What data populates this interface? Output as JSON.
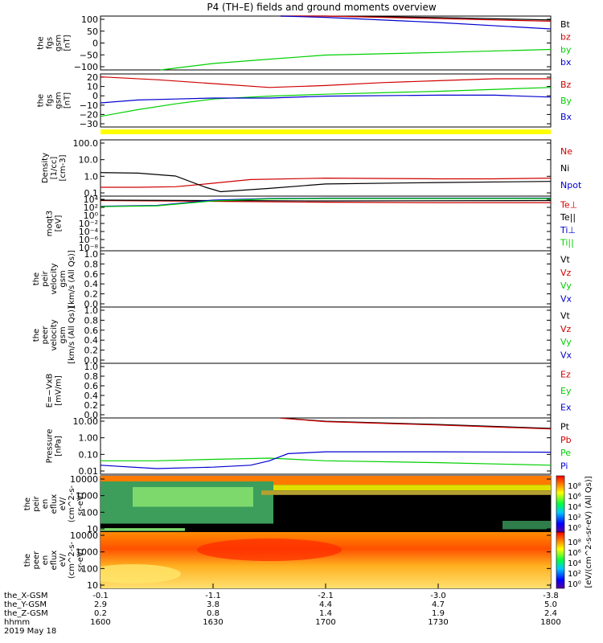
{
  "title": "P4 (TH–E) fields and ground moments overview",
  "colors": {
    "black": "#000000",
    "red": "#d00000",
    "green": "#00d000",
    "blue": "#0000d0",
    "yellow": "#ffff00"
  },
  "chart_data": [
    {
      "id": "panel-fgs-gsm-nt",
      "type": "line",
      "ylabel_lines": [
        "the",
        "fgs",
        "gsm",
        "[nT]"
      ],
      "yticks": [
        "100",
        "50",
        "0",
        "−50",
        "−100"
      ],
      "ylim": [
        -100,
        110
      ],
      "legend": [
        {
          "name": "Bt",
          "color": "black"
        },
        {
          "name": "bz",
          "color": "red"
        },
        {
          "name": "by",
          "color": "green"
        },
        {
          "name": "bx",
          "color": "blue"
        }
      ],
      "series": [
        {
          "name": "Bt",
          "color": "black",
          "x": [
            1648,
            1700,
            1730,
            1800
          ],
          "y": [
            120,
            112,
            104,
            95
          ]
        },
        {
          "name": "bz",
          "color": "red",
          "x": [
            1648,
            1700,
            1730,
            1800
          ],
          "y": [
            118,
            110,
            100,
            90
          ]
        },
        {
          "name": "by",
          "color": "green",
          "x": [
            1616,
            1630,
            1645,
            1700,
            1730,
            1800
          ],
          "y": [
            -100,
            -75,
            -58,
            -42,
            -32,
            -20
          ]
        },
        {
          "name": "bx",
          "color": "blue",
          "x": [
            1648,
            1700,
            1730,
            1800
          ],
          "y": [
            115,
            105,
            85,
            60
          ]
        }
      ]
    },
    {
      "id": "panel-fgs-gsm-nt-2",
      "type": "line",
      "ylabel_lines": [
        "the",
        "fgs",
        "gsm",
        "[nT]"
      ],
      "yticks": [
        "20",
        "10",
        "0",
        "−10",
        "−20",
        "−30"
      ],
      "ylim": [
        -33,
        22
      ],
      "legend": [
        {
          "name": "Bz",
          "color": "red"
        },
        {
          "name": "By",
          "color": "green"
        },
        {
          "name": "Bx",
          "color": "blue"
        }
      ],
      "series": [
        {
          "name": "Bz",
          "color": "red",
          "x": [
            1600,
            1615,
            1630,
            1645,
            1700,
            1715,
            1730,
            1745,
            1800
          ],
          "y": [
            19,
            16,
            12,
            8,
            10,
            13,
            15,
            17,
            17
          ]
        },
        {
          "name": "By",
          "color": "green",
          "x": [
            1600,
            1610,
            1620,
            1630,
            1645,
            1700,
            1730,
            1800
          ],
          "y": [
            -22,
            -15,
            -9,
            -4,
            -1,
            1,
            4,
            8
          ]
        },
        {
          "name": "Bx",
          "color": "blue",
          "x": [
            1600,
            1610,
            1620,
            1630,
            1645,
            1700,
            1730,
            1745,
            1800
          ],
          "y": [
            -8,
            -5,
            -4,
            -3,
            -3,
            -1,
            0,
            0,
            -2
          ]
        }
      ]
    },
    {
      "id": "panel-density",
      "type": "line",
      "ylabel_lines": [
        "Density",
        "[1/cc]",
        "[cm-3]"
      ],
      "yticks": [
        "100.0",
        "10.0",
        "1.0",
        "0.1"
      ],
      "ylim": [
        0.03,
        200
      ],
      "log": true,
      "legend": [
        {
          "name": "Ne",
          "color": "red"
        },
        {
          "name": "Ni",
          "color": "black"
        },
        {
          "name": "Npot",
          "color": "blue"
        }
      ],
      "series": [
        {
          "name": "Ne",
          "color": "red",
          "x": [
            1600,
            1610,
            1620,
            1628,
            1640,
            1700,
            1730,
            1745,
            1800
          ],
          "y": [
            0.12,
            0.12,
            0.13,
            0.2,
            0.4,
            0.5,
            0.45,
            0.45,
            0.5
          ]
        },
        {
          "name": "Ni",
          "color": "black",
          "x": [
            1600,
            1610,
            1620,
            1628,
            1632,
            1645,
            1700,
            1730,
            1800
          ],
          "y": [
            1.2,
            1.1,
            0.7,
            0.12,
            0.06,
            0.1,
            0.2,
            0.25,
            0.3
          ]
        }
      ]
    },
    {
      "id": "panel-moqt3",
      "type": "line",
      "ylabel_lines": [
        "moqt3",
        "[eV]"
      ],
      "yticks": [
        "10⁴",
        "10²",
        "10⁰",
        "10⁻²",
        "10⁻⁴",
        "10⁻⁶",
        "10⁻⁸"
      ],
      "ylim": [
        -9,
        4.5
      ],
      "log": true,
      "legend": [
        {
          "name": "Te⊥",
          "color": "red"
        },
        {
          "name": "Te||",
          "color": "black"
        },
        {
          "name": "Ti⊥",
          "color": "blue"
        },
        {
          "name": "Ti||",
          "color": "green"
        }
      ],
      "series": [
        {
          "name": "Te⊥",
          "color": "red",
          "x": [
            1600,
            1630,
            1700,
            1730,
            1800
          ],
          "y": [
            3.4,
            3.2,
            3.0,
            2.9,
            2.9
          ]
        },
        {
          "name": "Te||",
          "color": "black",
          "x": [
            1600,
            1630,
            1700,
            1800
          ],
          "y": [
            3.5,
            3.4,
            3.3,
            3.4
          ]
        },
        {
          "name": "Ti⊥",
          "color": "blue",
          "x": [
            1600,
            1615,
            1630,
            1645,
            1700,
            1800
          ],
          "y": [
            2.0,
            2.2,
            3.5,
            3.9,
            4.0,
            4.0
          ]
        },
        {
          "name": "Ti||",
          "color": "green",
          "x": [
            1600,
            1615,
            1630,
            1645,
            1700,
            1800
          ],
          "y": [
            1.9,
            2.1,
            3.3,
            3.8,
            3.9,
            3.9
          ]
        }
      ]
    },
    {
      "id": "panel-peir-velocity",
      "type": "line",
      "ylabel_lines": [
        "the",
        "peir",
        "velocity",
        "gsm",
        "[km/s (All Qs)]"
      ],
      "yticks": [
        "1.0",
        "0.8",
        "0.6",
        "0.4",
        "0.2",
        "0.0"
      ],
      "ylim": [
        0,
        1
      ],
      "legend": [
        {
          "name": "Vt",
          "color": "black"
        },
        {
          "name": "Vz",
          "color": "red"
        },
        {
          "name": "Vy",
          "color": "green"
        },
        {
          "name": "Vx",
          "color": "blue"
        }
      ],
      "series": []
    },
    {
      "id": "panel-peer-velocity",
      "type": "line",
      "ylabel_lines": [
        "the",
        "peer",
        "velocity",
        "gsm",
        "[km/s (All Qs)]"
      ],
      "yticks": [
        "1.0",
        "0.8",
        "0.6",
        "0.4",
        "0.2",
        "0.0"
      ],
      "ylim": [
        0,
        1
      ],
      "legend": [
        {
          "name": "Vt",
          "color": "black"
        },
        {
          "name": "Vz",
          "color": "red"
        },
        {
          "name": "Vy",
          "color": "green"
        },
        {
          "name": "Vx",
          "color": "blue"
        }
      ],
      "series": []
    },
    {
      "id": "panel-e-vxb",
      "type": "line",
      "ylabel_lines": [
        "E=−VxB",
        "[mV/m]"
      ],
      "yticks": [
        "1.0",
        "0.8",
        "0.6",
        "0.4",
        "0.2",
        "0.0"
      ],
      "ylim": [
        0,
        1
      ],
      "legend": [
        {
          "name": "Ez",
          "color": "red"
        },
        {
          "name": "Ey",
          "color": "green"
        },
        {
          "name": "Ex",
          "color": "blue"
        }
      ],
      "series": []
    },
    {
      "id": "panel-pressure",
      "type": "line",
      "ylabel_lines": [
        "Pressure",
        "[nPa]"
      ],
      "yticks": [
        "10.00",
        "1.00",
        "0.10",
        "0.01"
      ],
      "ylim": [
        0.005,
        30
      ],
      "log": true,
      "legend": [
        {
          "name": "Pt",
          "color": "black"
        },
        {
          "name": "Pb",
          "color": "red"
        },
        {
          "name": "Pe",
          "color": "green"
        },
        {
          "name": "Pi",
          "color": "blue"
        }
      ],
      "series": [
        {
          "name": "Pt",
          "color": "black",
          "x": [
            1648,
            1700,
            1730,
            1800
          ],
          "y": [
            30,
            18,
            11,
            6
          ]
        },
        {
          "name": "Pb",
          "color": "red",
          "x": [
            1648,
            1700,
            1730,
            1800
          ],
          "y": [
            29,
            17,
            10,
            5.5
          ]
        },
        {
          "name": "Pe",
          "color": "green",
          "x": [
            1600,
            1615,
            1630,
            1645,
            1700,
            1730,
            1800
          ],
          "y": [
            0.04,
            0.04,
            0.05,
            0.06,
            0.04,
            0.03,
            0.02
          ]
        },
        {
          "name": "Pi",
          "color": "blue",
          "x": [
            1600,
            1615,
            1630,
            1640,
            1645,
            1650,
            1700,
            1730,
            1800
          ],
          "y": [
            0.02,
            0.012,
            0.015,
            0.02,
            0.04,
            0.12,
            0.16,
            0.16,
            0.15
          ]
        }
      ]
    },
    {
      "id": "panel-peir-en-eflux",
      "type": "heatmap",
      "ylabel_lines": [
        "the",
        "peir",
        "en",
        "eflux",
        "eV/",
        "(cm^2-s-",
        "sr-eV)"
      ],
      "yticks": [
        "10000",
        "1000",
        "100",
        "10"
      ],
      "ylim": [
        5,
        20000
      ],
      "log": true
    },
    {
      "id": "panel-peer-en-eflux",
      "type": "heatmap",
      "ylabel_lines": [
        "the",
        "peer",
        "en",
        "eflux",
        "eV/",
        "(cm^2-s-",
        "sr-eV)"
      ],
      "yticks": [
        "10000",
        "1000",
        "100",
        "10"
      ],
      "ylim": [
        5,
        20000
      ],
      "log": true
    }
  ],
  "colorbar": {
    "label": "[eV/(cm^2-s-sr-eV) (All Qs)]",
    "ticks": [
      "10⁸",
      "10⁶",
      "10⁴",
      "10²",
      "10⁰"
    ]
  },
  "x_axis": {
    "rows": [
      {
        "name": "the_X-GSM",
        "values": [
          "-0.1",
          "-1.1",
          "-2.1",
          "-3.0",
          "-3.8"
        ]
      },
      {
        "name": "the_Y-GSM",
        "values": [
          "2.9",
          "3.8",
          "4.4",
          "4.7",
          "5.0"
        ]
      },
      {
        "name": "the_Z-GSM",
        "values": [
          "0.2",
          "0.8",
          "1.4",
          "1.9",
          "2.4"
        ]
      },
      {
        "name": "hhmm",
        "values": [
          "1600",
          "1630",
          "1700",
          "1730",
          "1800"
        ]
      }
    ],
    "date": "2019 May 18",
    "xlim_hhmm": [
      1600,
      1800
    ]
  }
}
